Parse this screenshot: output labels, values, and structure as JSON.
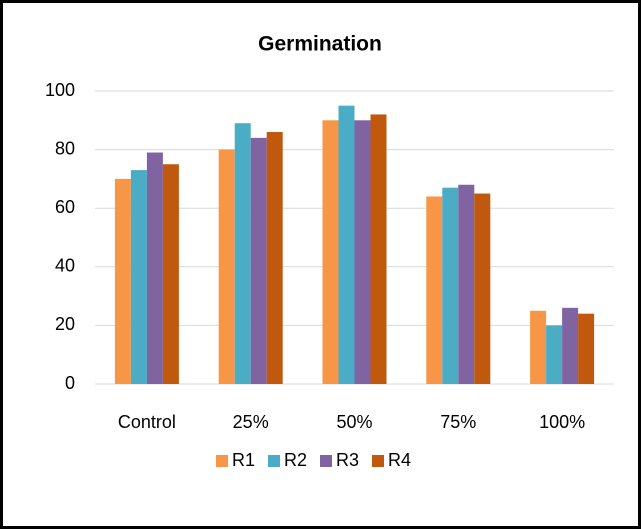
{
  "chart_data": {
    "type": "bar",
    "title": "Germination",
    "categories": [
      "Control",
      "25%",
      "50%",
      "75%",
      "100%"
    ],
    "series": [
      {
        "name": "R1",
        "color": "#f79646",
        "values": [
          70,
          80,
          90,
          64,
          25
        ]
      },
      {
        "name": "R2",
        "color": "#4bacc6",
        "values": [
          73,
          89,
          95,
          67,
          20
        ]
      },
      {
        "name": "R3",
        "color": "#8064a2",
        "values": [
          79,
          84,
          90,
          68,
          26
        ]
      },
      {
        "name": "R4",
        "color": "#c0580e",
        "values": [
          75,
          86,
          92,
          65,
          24
        ]
      }
    ],
    "ylim": [
      0,
      100
    ],
    "yticks": [
      0,
      20,
      40,
      60,
      80,
      100
    ],
    "grid": true,
    "legend": "bottom"
  }
}
